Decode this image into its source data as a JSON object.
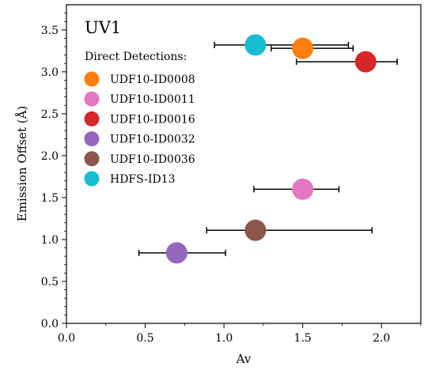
{
  "chart_data": {
    "type": "scatter",
    "title": "UV1",
    "xlabel": "Av",
    "ylabel": "Emission Offset (Å)",
    "xlim": [
      0.0,
      2.25
    ],
    "ylim": [
      0.0,
      3.8
    ],
    "xticks": [
      "0.0",
      "0.5",
      "1.0",
      "1.5",
      "2.0"
    ],
    "xtick_values": [
      0.0,
      0.5,
      1.0,
      1.5,
      2.0
    ],
    "yticks": [
      "0.0",
      "0.5",
      "1.0",
      "1.5",
      "2.0",
      "2.5",
      "3.0",
      "3.5"
    ],
    "ytick_values": [
      0.0,
      0.5,
      1.0,
      1.5,
      2.0,
      2.5,
      3.0,
      3.5
    ],
    "grid": false,
    "legend": {
      "title": "Direct Detections:",
      "position": "upper-left"
    },
    "series": [
      {
        "name": "UDF10-ID0008",
        "color": "#ff7f0e",
        "x": 1.5,
        "y": 3.28,
        "xerr": [
          1.3,
          1.82
        ]
      },
      {
        "name": "UDF10-ID0011",
        "color": "#e377c2",
        "x": 1.5,
        "y": 1.6,
        "xerr": [
          1.19,
          1.73
        ]
      },
      {
        "name": "UDF10-ID0016",
        "color": "#d62728",
        "x": 1.9,
        "y": 3.12,
        "xerr": [
          1.46,
          2.1
        ]
      },
      {
        "name": "UDF10-ID0032",
        "color": "#9467bd",
        "x": 0.7,
        "y": 0.84,
        "xerr": [
          0.46,
          1.01
        ]
      },
      {
        "name": "UDF10-ID0036",
        "color": "#8c564b",
        "x": 1.2,
        "y": 1.11,
        "xerr": [
          0.89,
          1.94
        ]
      },
      {
        "name": "HDFS-ID13",
        "color": "#17becf",
        "x": 1.2,
        "y": 3.32,
        "xerr": [
          0.94,
          1.79
        ]
      }
    ]
  }
}
